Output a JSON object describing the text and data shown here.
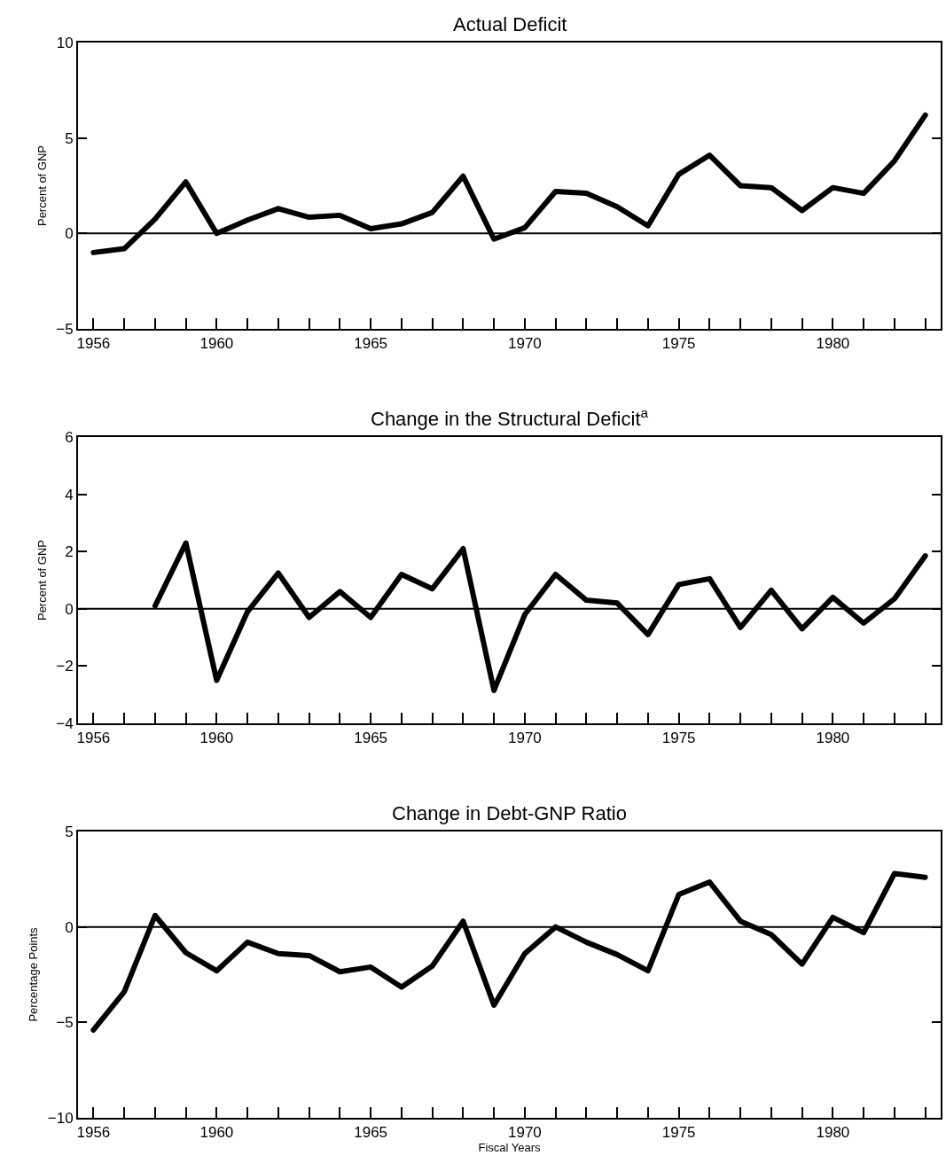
{
  "chart_data": [
    {
      "type": "line",
      "title": "Actual Deficit",
      "ylabel": "Percent of GNP",
      "x": [
        1956,
        1957,
        1958,
        1959,
        1960,
        1961,
        1962,
        1963,
        1964,
        1965,
        1966,
        1967,
        1968,
        1969,
        1970,
        1971,
        1972,
        1973,
        1974,
        1975,
        1976,
        1977,
        1978,
        1979,
        1980,
        1981,
        1982,
        1983
      ],
      "series": [
        {
          "color": "#000000",
          "values": [
            -1.0,
            -0.8,
            0.75,
            2.7,
            0,
            0.7,
            1.3,
            0.85,
            0.95,
            0.25,
            0.5,
            1.1,
            3.0,
            -0.3,
            0.3,
            2.2,
            2.1,
            1.4,
            0.4,
            3.1,
            4.1,
            2.5,
            2.4,
            1.2,
            2.4,
            2.1,
            3.8,
            6.2
          ]
        }
      ],
      "xlim": [
        1955.5,
        1983.5
      ],
      "ylim": [
        -5,
        10
      ],
      "yticks": [
        {
          "value": -5,
          "label": "−5"
        },
        0,
        5,
        10
      ],
      "xticks": [
        1956,
        {
          "value": 1957,
          "label": null
        },
        {
          "value": 1958,
          "label": null
        },
        {
          "value": 1959,
          "label": null
        },
        1960,
        {
          "value": 1961,
          "label": null
        },
        {
          "value": 1962,
          "label": null
        },
        {
          "value": 1963,
          "label": null
        },
        {
          "value": 1964,
          "label": null
        },
        1965,
        {
          "value": 1966,
          "label": null
        },
        {
          "value": 1967,
          "label": null
        },
        {
          "value": 1968,
          "label": null
        },
        {
          "value": 1969,
          "label": null
        },
        1970,
        {
          "value": 1971,
          "label": null
        },
        {
          "value": 1972,
          "label": null
        },
        {
          "value": 1973,
          "label": null
        },
        {
          "value": 1974,
          "label": null
        },
        1975,
        {
          "value": 1976,
          "label": null
        },
        {
          "value": 1977,
          "label": null
        },
        {
          "value": 1978,
          "label": null
        },
        {
          "value": 1979,
          "label": null
        },
        1980,
        {
          "value": 1981,
          "label": null
        },
        {
          "value": 1982,
          "label": null
        },
        {
          "value": 1983,
          "label": null
        }
      ],
      "ref_lines": [
        {
          "axis": "y",
          "value": 0,
          "color": "#000000"
        }
      ],
      "marker": "none",
      "line_style": "solid"
    },
    {
      "type": "line",
      "title": "Change in the Structural Deficit$^{a}$",
      "ylabel": "Percent of GNP",
      "x": [
        1958,
        1959,
        1960,
        1961,
        1962,
        1963,
        1964,
        1965,
        1966,
        1967,
        1968,
        1969,
        1970,
        1971,
        1972,
        1973,
        1974,
        1975,
        1976,
        1977,
        1978,
        1979,
        1980,
        1981,
        1982,
        1983
      ],
      "series": [
        {
          "color": "#000000",
          "values": [
            0.1,
            2.3,
            -2.5,
            -0.1,
            1.25,
            -0.3,
            0.6,
            -0.3,
            1.2,
            0.7,
            2.1,
            -2.85,
            -0.2,
            1.2,
            0.3,
            0.2,
            -0.9,
            0.85,
            1.05,
            -0.65,
            0.65,
            -0.7,
            0.4,
            -0.5,
            0.35,
            1.85
          ]
        }
      ],
      "xlim": [
        1955.5,
        1983.5
      ],
      "ylim": [
        -4,
        6
      ],
      "yticks": [
        {
          "value": -4,
          "label": "−4"
        },
        {
          "value": -2,
          "label": "−2"
        },
        0,
        2,
        4,
        6
      ],
      "xticks": [
        1956,
        {
          "value": 1957,
          "label": null
        },
        {
          "value": 1958,
          "label": null
        },
        {
          "value": 1959,
          "label": null
        },
        1960,
        {
          "value": 1961,
          "label": null
        },
        {
          "value": 1962,
          "label": null
        },
        {
          "value": 1963,
          "label": null
        },
        {
          "value": 1964,
          "label": null
        },
        1965,
        {
          "value": 1966,
          "label": null
        },
        {
          "value": 1967,
          "label": null
        },
        {
          "value": 1968,
          "label": null
        },
        {
          "value": 1969,
          "label": null
        },
        1970,
        {
          "value": 1971,
          "label": null
        },
        {
          "value": 1972,
          "label": null
        },
        {
          "value": 1973,
          "label": null
        },
        {
          "value": 1974,
          "label": null
        },
        1975,
        {
          "value": 1976,
          "label": null
        },
        {
          "value": 1977,
          "label": null
        },
        {
          "value": 1978,
          "label": null
        },
        {
          "value": 1979,
          "label": null
        },
        1980,
        {
          "value": 1981,
          "label": null
        },
        {
          "value": 1982,
          "label": null
        },
        {
          "value": 1983,
          "label": null
        }
      ],
      "ref_lines": [
        {
          "axis": "y",
          "value": 0,
          "color": "#000000"
        }
      ],
      "marker": "none",
      "line_style": "solid"
    },
    {
      "type": "line",
      "title": "Change in Debt-GNP Ratio",
      "ylabel": "Percentage Points",
      "xlabel": "Fiscal Years",
      "x": [
        1956,
        1957,
        1958,
        1959,
        1960,
        1961,
        1962,
        1963,
        1964,
        1965,
        1966,
        1967,
        1968,
        1969,
        1970,
        1971,
        1972,
        1973,
        1974,
        1975,
        1976,
        1977,
        1978,
        1979,
        1980,
        1981,
        1982,
        1983
      ],
      "series": [
        {
          "color": "#000000",
          "values": [
            -5.4,
            -3.4,
            0.6,
            -1.35,
            -2.3,
            -0.8,
            -1.4,
            -1.5,
            -2.35,
            -2.1,
            -3.15,
            -2.05,
            0.3,
            -4.1,
            -1.4,
            0,
            -0.8,
            -1.45,
            -2.3,
            1.7,
            2.35,
            0.3,
            -0.4,
            -1.95,
            0.5,
            -0.3,
            2.8,
            2.6
          ]
        }
      ],
      "xlim": [
        1955.5,
        1983.5
      ],
      "ylim": [
        -10,
        5
      ],
      "yticks": [
        {
          "value": -10,
          "label": "−10"
        },
        {
          "value": -5,
          "label": "−5"
        },
        0,
        5
      ],
      "xticks": [
        1956,
        {
          "value": 1957,
          "label": null
        },
        {
          "value": 1958,
          "label": null
        },
        {
          "value": 1959,
          "label": null
        },
        1960,
        {
          "value": 1961,
          "label": null
        },
        {
          "value": 1962,
          "label": null
        },
        {
          "value": 1963,
          "label": null
        },
        {
          "value": 1964,
          "label": null
        },
        1965,
        {
          "value": 1966,
          "label": null
        },
        {
          "value": 1967,
          "label": null
        },
        {
          "value": 1968,
          "label": null
        },
        {
          "value": 1969,
          "label": null
        },
        1970,
        {
          "value": 1971,
          "label": null
        },
        {
          "value": 1972,
          "label": null
        },
        {
          "value": 1973,
          "label": null
        },
        {
          "value": 1974,
          "label": null
        },
        1975,
        {
          "value": 1976,
          "label": null
        },
        {
          "value": 1977,
          "label": null
        },
        {
          "value": 1978,
          "label": null
        },
        {
          "value": 1979,
          "label": null
        },
        1980,
        {
          "value": 1981,
          "label": null
        },
        {
          "value": 1982,
          "label": null
        },
        {
          "value": 1983,
          "label": null
        }
      ],
      "ref_lines": [
        {
          "axis": "y",
          "value": 0,
          "color": "#000000"
        }
      ],
      "marker": "none",
      "line_style": "solid"
    }
  ]
}
